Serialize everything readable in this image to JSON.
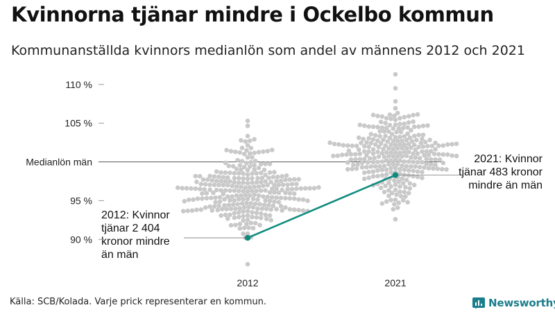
{
  "title": "Kvinnorna tjänar mindre i Ockelbo kommun",
  "subtitle": "Kommunanställda kvinnors medianlön som andel av männens 2012 och 2021",
  "footer": {
    "source": "Källa: SCB/Kolada. Varje prick representerar en kommun.",
    "brand": "Newsworthy"
  },
  "colors": {
    "dots": "#c9c9c9",
    "highlight": "#0f8b7e",
    "text": "#111111",
    "brand": "#1b7e8c"
  },
  "chart_data": {
    "type": "scatter",
    "subtype": "beeswarm",
    "title": "Kvinnorna tjänar mindre i Ockelbo kommun",
    "ylim": [
      86,
      111.5
    ],
    "yticks": [
      {
        "value": 90,
        "label": "90 %"
      },
      {
        "value": 95,
        "label": "95 %"
      },
      {
        "value": 105,
        "label": "105 %"
      },
      {
        "value": 110,
        "label": "110 %"
      }
    ],
    "reference_line": {
      "value": 100,
      "label": "Medianlön män"
    },
    "categories": [
      "2012",
      "2021"
    ],
    "distributions": [
      {
        "year": "2012",
        "min": 86.8,
        "max": 105.3,
        "center": 96.2,
        "spread": 2.9,
        "count": 290
      },
      {
        "year": "2021",
        "min": 92.6,
        "max": 111.3,
        "center": 101.2,
        "spread": 2.7,
        "count": 290
      }
    ],
    "highlight": {
      "name": "Ockelbo",
      "values": [
        {
          "year": "2012",
          "value": 90.2
        },
        {
          "year": "2021",
          "value": 98.3
        }
      ]
    },
    "annotations": [
      {
        "year": "2012",
        "lines": [
          "2012: Kvinnor",
          "tjänar 2 404",
          "kronor mindre",
          "än män"
        ]
      },
      {
        "year": "2021",
        "lines": [
          "2021: Kvinnor",
          "tjänar 483 kronor",
          "mindre än män"
        ]
      }
    ]
  }
}
